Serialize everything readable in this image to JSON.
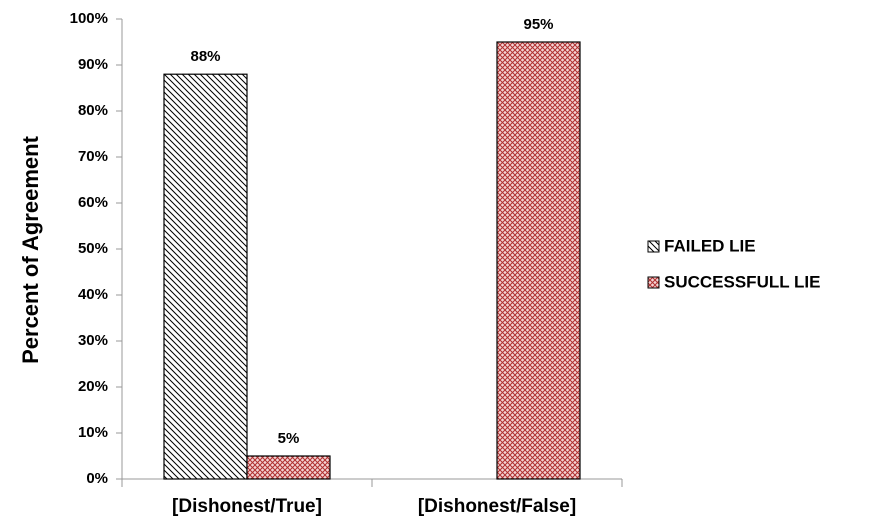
{
  "chart_data": {
    "type": "bar",
    "y_label": "Percent of Agreement",
    "categories": [
      "[Dishonest/True]",
      "[Dishonest/False]"
    ],
    "series": [
      {
        "name": "FAILED LIE",
        "color": "#000000",
        "values": [
          88,
          null
        ],
        "value_labels": [
          "88%",
          null
        ]
      },
      {
        "name": "SUCCESSFULL LIE",
        "color": "#b03030",
        "values": [
          5,
          95
        ],
        "value_labels": [
          "5%",
          "95%"
        ]
      }
    ],
    "ylim": [
      0,
      100
    ],
    "yticks": [
      {
        "value": 0,
        "label": "0%"
      },
      {
        "value": 10,
        "label": "10%"
      },
      {
        "value": 20,
        "label": "20%"
      },
      {
        "value": 30,
        "label": "30%"
      },
      {
        "value": 40,
        "label": "40%"
      },
      {
        "value": 50,
        "label": "50%"
      },
      {
        "value": 60,
        "label": "60%"
      },
      {
        "value": 70,
        "label": "70%"
      },
      {
        "value": 80,
        "label": "80%"
      },
      {
        "value": 90,
        "label": "90%"
      },
      {
        "value": 100,
        "label": "100%"
      }
    ],
    "legend": "right"
  }
}
